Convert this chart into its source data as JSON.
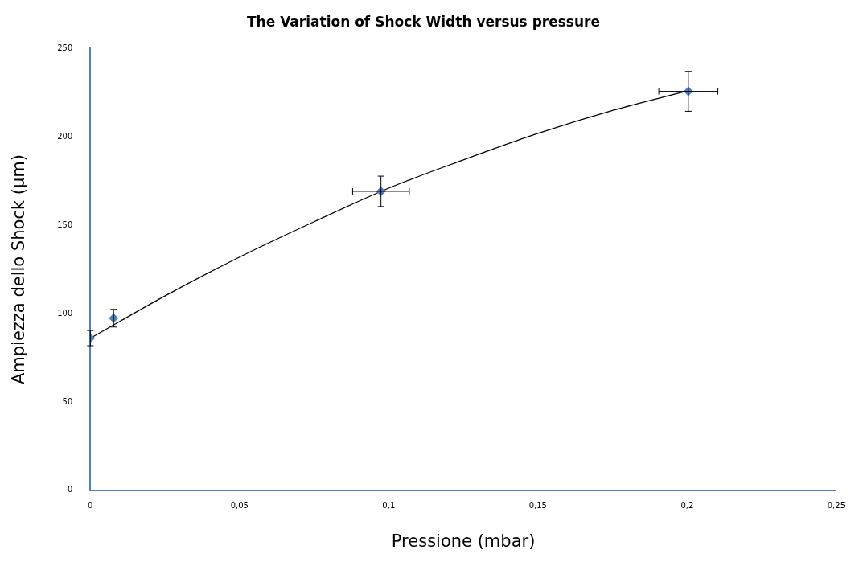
{
  "chart_data": {
    "type": "scatter",
    "title": "The Variation of Shock Width versus pressure",
    "xlabel": "Pressione (mbar)",
    "ylabel": "Ampiezza dello Shock (µm)",
    "xlim": [
      0,
      0.25
    ],
    "xticks": [
      0,
      {
        "value": 0.05,
        "label": "0,05"
      },
      {
        "value": 0.1,
        "label": "0,1"
      },
      {
        "value": 0.15,
        "label": "0,15"
      },
      {
        "value": 0.2,
        "label": "0,2"
      },
      {
        "value": 0.25,
        "label": "0,25"
      }
    ],
    "ylim": [
      0,
      250
    ],
    "yticks": [
      0,
      50,
      100,
      150,
      200,
      250
    ],
    "grid": false,
    "legend": false,
    "marker": "diamond",
    "series": [
      {
        "color": "#4f81bd",
        "x": [
          0,
          0.0078,
          0.0974,
          0.2004
        ],
        "values": [
          86.1,
          97.4,
          169.2,
          225.8
        ],
        "errors": [
          4.3,
          5,
          8.6,
          11.3
        ],
        "xerrors": [
          null,
          null,
          0.0095,
          0.0099
        ]
      },
      {
        "type": "line",
        "color": "#000000",
        "marker": "none",
        "x": [
          0,
          0.025,
          0.05,
          0.075,
          0.1,
          0.125,
          0.15,
          0.175,
          0.2
        ],
        "values": [
          86,
          110,
          132,
          152,
          171,
          187,
          202,
          215,
          226
        ]
      }
    ]
  }
}
